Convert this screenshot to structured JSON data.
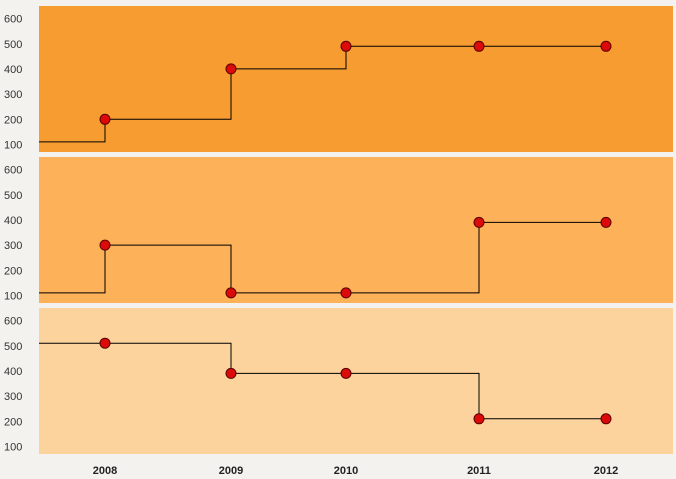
{
  "chart_data": {
    "type": "line",
    "step": true,
    "categories": [
      "2008",
      "2009",
      "2010",
      "2011",
      "2012"
    ],
    "ylim": [
      70,
      650
    ],
    "yticks": [
      "100",
      "200",
      "300",
      "400",
      "500",
      "600"
    ],
    "grid": false,
    "panels": [
      {
        "color": "#f79c31",
        "series": [
          {
            "values": [
              200,
              400,
              490,
              490,
              490
            ],
            "start_value": 110
          }
        ]
      },
      {
        "color": "#fdb159",
        "series": [
          {
            "values": [
              300,
              110,
              110,
              390,
              390
            ],
            "start_value": 110
          }
        ]
      },
      {
        "color": "#fcd39d",
        "series": [
          {
            "values": [
              510,
              390,
              390,
              210,
              210
            ],
            "start_value": 510
          }
        ]
      }
    ],
    "marker_color": "#dd0a0a",
    "line_color": "#000000"
  }
}
